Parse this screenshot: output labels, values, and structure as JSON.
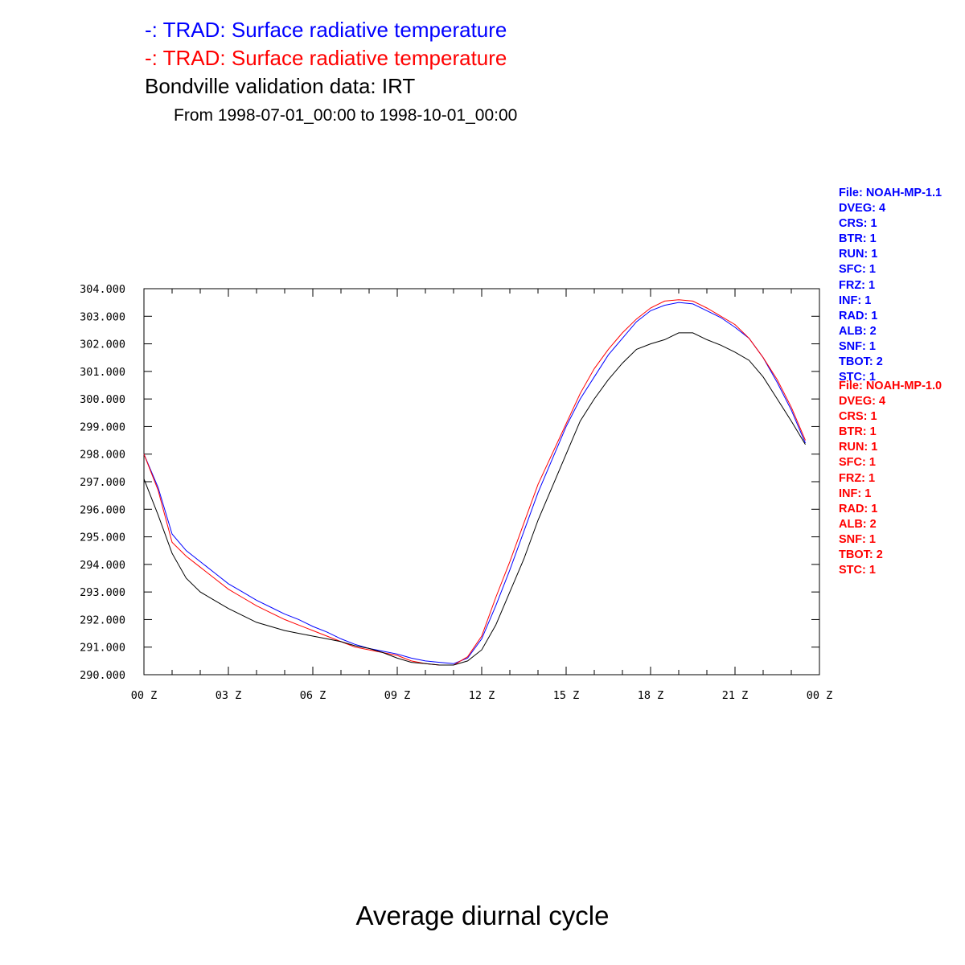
{
  "titles": {
    "line1": "-: TRAD: Surface radiative temperature",
    "line2": "-: TRAD: Surface radiative temperature",
    "line3": "Bondville validation data: IRT",
    "line4": "From 1998-07-01_00:00 to 1998-10-01_00:00"
  },
  "footer": "Average diurnal cycle",
  "info_blue": [
    "File: NOAH-MP-1.1",
    "DVEG: 4",
    "CRS: 1",
    "BTR: 1",
    "RUN: 1",
    "SFC: 1",
    "FRZ: 1",
    "INF: 1",
    "RAD: 1",
    "ALB: 2",
    "SNF: 1",
    "TBOT: 2",
    "STC: 1"
  ],
  "info_red": [
    "File: NOAH-MP-1.0",
    "DVEG: 4",
    "CRS: 1",
    "BTR: 1",
    "RUN: 1",
    "SFC: 1",
    "FRZ: 1",
    "INF: 1",
    "RAD: 1",
    "ALB: 2",
    "SNF: 1",
    "TBOT: 2",
    "STC: 1"
  ],
  "colors": {
    "blue": "#0000ff",
    "red": "#ff0000",
    "black": "#000000"
  },
  "chart_data": {
    "type": "line",
    "xlabel": "",
    "ylabel": "",
    "x_ticks": [
      "00 Z",
      "03 Z",
      "06 Z",
      "09 Z",
      "12 Z",
      "15 Z",
      "18 Z",
      "21 Z",
      "00 Z"
    ],
    "x_tick_hours": [
      0,
      3,
      6,
      9,
      12,
      15,
      18,
      21,
      24
    ],
    "xlim": [
      0,
      24
    ],
    "y_ticks": [
      "290.000",
      "291.000",
      "292.000",
      "293.000",
      "294.000",
      "295.000",
      "296.000",
      "297.000",
      "298.000",
      "299.000",
      "300.000",
      "301.000",
      "302.000",
      "303.000",
      "304.000"
    ],
    "ylim": [
      290,
      304
    ],
    "grid": false,
    "x": [
      0,
      0.5,
      1,
      1.5,
      2,
      2.5,
      3,
      3.5,
      4,
      4.5,
      5,
      5.5,
      6,
      6.5,
      7,
      7.5,
      8,
      8.5,
      9,
      9.5,
      10,
      10.5,
      11,
      11.5,
      12,
      12.5,
      13,
      13.5,
      14,
      14.5,
      15,
      15.5,
      16,
      16.5,
      17,
      17.5,
      18,
      18.5,
      19,
      19.5,
      20,
      20.5,
      21,
      21.5,
      22,
      22.5,
      23,
      23.5
    ],
    "series": [
      {
        "color": "#0000ff",
        "values": [
          298.0,
          296.8,
          295.1,
          294.5,
          294.1,
          293.7,
          293.3,
          293.0,
          292.7,
          292.45,
          292.2,
          292.0,
          291.75,
          291.55,
          291.3,
          291.1,
          290.95,
          290.85,
          290.75,
          290.6,
          290.5,
          290.45,
          290.4,
          290.6,
          291.3,
          292.5,
          293.8,
          295.2,
          296.6,
          297.8,
          299.0,
          300.0,
          300.8,
          301.6,
          302.2,
          302.8,
          303.2,
          303.4,
          303.5,
          303.45,
          303.2,
          302.95,
          302.6,
          302.2,
          301.5,
          300.6,
          299.6,
          298.4
        ]
      },
      {
        "color": "#ff0000",
        "values": [
          298.0,
          296.7,
          294.8,
          294.3,
          293.9,
          293.5,
          293.1,
          292.8,
          292.5,
          292.25,
          292.0,
          291.8,
          291.6,
          291.4,
          291.2,
          291.0,
          290.9,
          290.8,
          290.7,
          290.5,
          290.4,
          290.35,
          290.35,
          290.65,
          291.4,
          292.8,
          294.1,
          295.5,
          296.9,
          298.0,
          299.1,
          300.2,
          301.1,
          301.8,
          302.4,
          302.9,
          303.3,
          303.55,
          303.6,
          303.55,
          303.3,
          303.0,
          302.7,
          302.2,
          301.5,
          300.7,
          299.7,
          298.5
        ]
      },
      {
        "color": "#000000",
        "values": [
          297.1,
          295.8,
          294.4,
          293.5,
          293.0,
          292.7,
          292.4,
          292.15,
          291.9,
          291.75,
          291.6,
          291.5,
          291.4,
          291.3,
          291.2,
          291.05,
          290.95,
          290.8,
          290.6,
          290.45,
          290.4,
          290.35,
          290.35,
          290.5,
          290.9,
          291.8,
          293.0,
          294.2,
          295.6,
          296.8,
          298.0,
          299.2,
          300.0,
          300.7,
          301.3,
          301.8,
          302.0,
          302.15,
          302.4,
          302.4,
          302.15,
          301.95,
          301.7,
          301.4,
          300.8,
          300.0,
          299.2,
          298.35
        ]
      }
    ]
  }
}
